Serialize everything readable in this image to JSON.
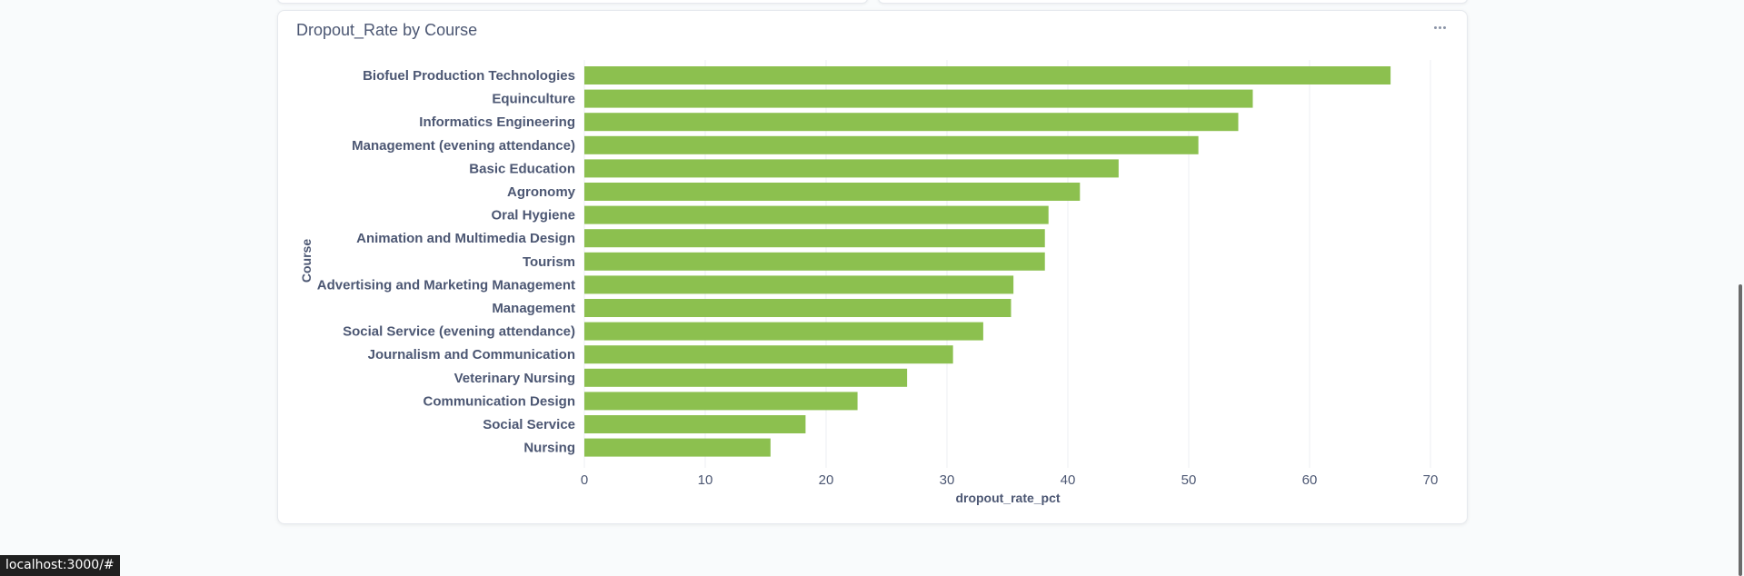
{
  "card": {
    "title": "Dropout_Rate by Course"
  },
  "statusbar": {
    "url": "localhost:3000/#"
  },
  "colors": {
    "bar": "#8cc04f",
    "grid": "#eceff3",
    "text": "#4c5773"
  },
  "icons": {
    "more": "more-horizontal-icon"
  },
  "chart_data": {
    "type": "bar",
    "orientation": "horizontal",
    "title": "Dropout_Rate by Course",
    "xlabel": "dropout_rate_pct",
    "ylabel": "Course",
    "xlim": [
      0,
      70
    ],
    "xticks": [
      "0",
      "10",
      "20",
      "30",
      "40",
      "50",
      "60",
      "70"
    ],
    "grid": true,
    "categories": [
      "Biofuel Production Technologies",
      "Equinculture",
      "Informatics Engineering",
      "Management (evening attendance)",
      "Basic Education",
      "Agronomy",
      "Oral Hygiene",
      "Animation and Multimedia Design",
      "Tourism",
      "Advertising and Marketing Management",
      "Management",
      "Social Service (evening attendance)",
      "Journalism and Communication",
      "Veterinary Nursing",
      "Communication Design",
      "Social Service",
      "Nursing"
    ],
    "values": [
      66.7,
      55.3,
      54.1,
      50.8,
      44.2,
      41.0,
      38.4,
      38.1,
      38.1,
      35.5,
      35.3,
      33.0,
      30.5,
      26.7,
      22.6,
      18.3,
      15.4
    ]
  }
}
